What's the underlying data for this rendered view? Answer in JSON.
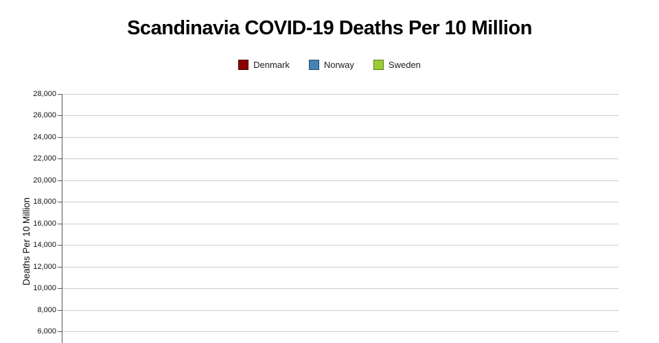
{
  "title": "Scandinavia COVID-19 Deaths Per 10 Million",
  "legend": {
    "items": [
      {
        "label": "Denmark",
        "color": "#8b0000",
        "border": "#4d0000"
      },
      {
        "label": "Norway",
        "color": "#4682b4",
        "border": "#27496b"
      },
      {
        "label": "Sweden",
        "color": "#9acd32",
        "border": "#5c7a1e"
      }
    ]
  },
  "y_axis": {
    "label": "Deaths Per 10 Million",
    "tick_labels": [
      "28,000",
      "26,000",
      "24,000",
      "22,000",
      "20,000",
      "18,000",
      "16,000",
      "14,000",
      "12,000",
      "10,000",
      "8,000",
      "6,000"
    ]
  },
  "colors": {
    "gridline": "#cccccc",
    "axis": "#555555",
    "text": "#111111"
  },
  "chart_data": {
    "type": "line",
    "title": "Scandinavia COVID-19 Deaths Per 10 Million",
    "xlabel": "",
    "ylabel": "Deaths Per 10 Million",
    "series": [
      {
        "name": "Denmark",
        "color": "#8b0000",
        "values": []
      },
      {
        "name": "Norway",
        "color": "#4682b4",
        "values": []
      },
      {
        "name": "Sweden",
        "color": "#9acd32",
        "values": []
      }
    ],
    "y_ticks_visible": [
      28000,
      26000,
      24000,
      22000,
      20000,
      18000,
      16000,
      14000,
      12000,
      10000,
      8000,
      6000
    ],
    "grid": true,
    "legend_position": "top",
    "note": "Plot area is empty in the visible region; the chart bottom (x-axis and any data lines) is cropped off below the 500px frame."
  }
}
